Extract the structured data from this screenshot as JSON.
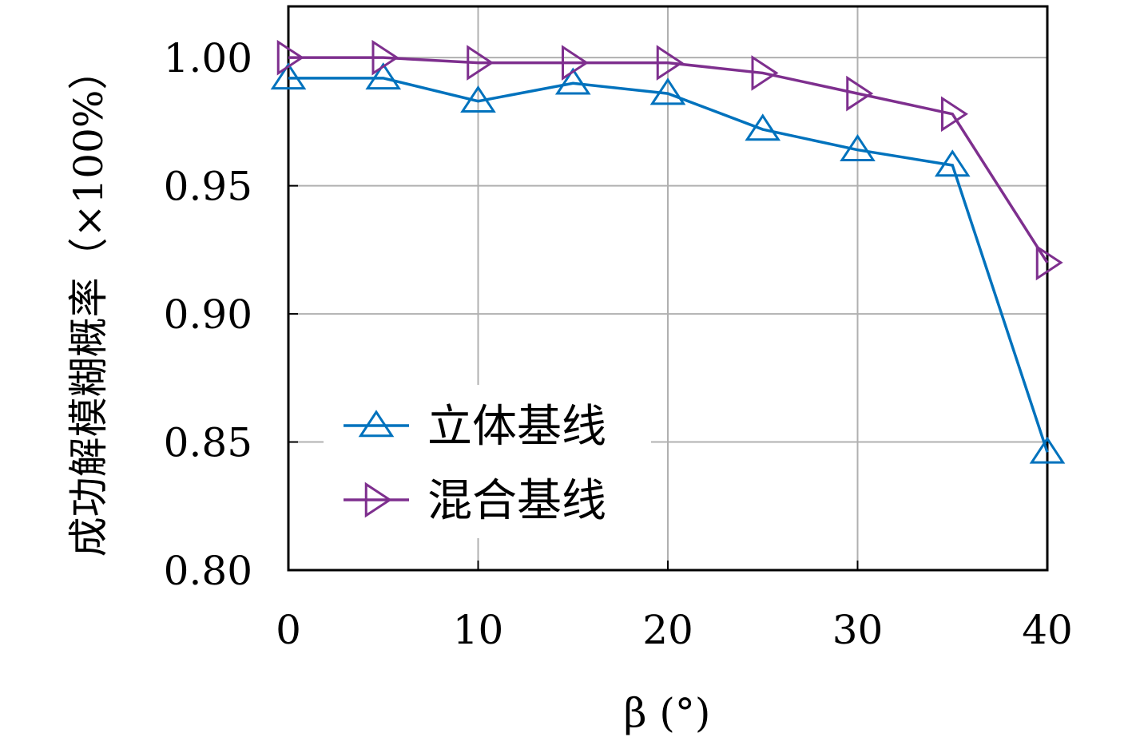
{
  "chart_data": {
    "type": "line",
    "title": "",
    "xlabel": "β (°)",
    "ylabel": "成功解模糊概率（×100%）",
    "xlim": [
      0,
      40
    ],
    "ylim": [
      0.8,
      1.02
    ],
    "x_ticks": [
      "0",
      "10",
      "20",
      "30",
      "40"
    ],
    "x_tick_values": [
      0,
      10,
      20,
      30,
      40
    ],
    "y_ticks": [
      "0.80",
      "0.85",
      "0.90",
      "0.95",
      "1.00"
    ],
    "y_tick_values": [
      0.8,
      0.85,
      0.9,
      0.95,
      1.0
    ],
    "grid": true,
    "legend_position": "lower-left",
    "x": [
      0,
      5,
      10,
      15,
      20,
      25,
      30,
      35,
      40
    ],
    "series": [
      {
        "name": "立体基线",
        "color": "#0072BD",
        "marker": "triangle-up",
        "values": [
          0.992,
          0.992,
          0.983,
          0.99,
          0.986,
          0.972,
          0.964,
          0.958,
          0.846
        ]
      },
      {
        "name": "混合基线",
        "color": "#7E2F8E",
        "marker": "triangle-right",
        "values": [
          1.0,
          1.0,
          0.998,
          0.998,
          0.998,
          0.994,
          0.986,
          0.978,
          0.92
        ]
      }
    ]
  }
}
